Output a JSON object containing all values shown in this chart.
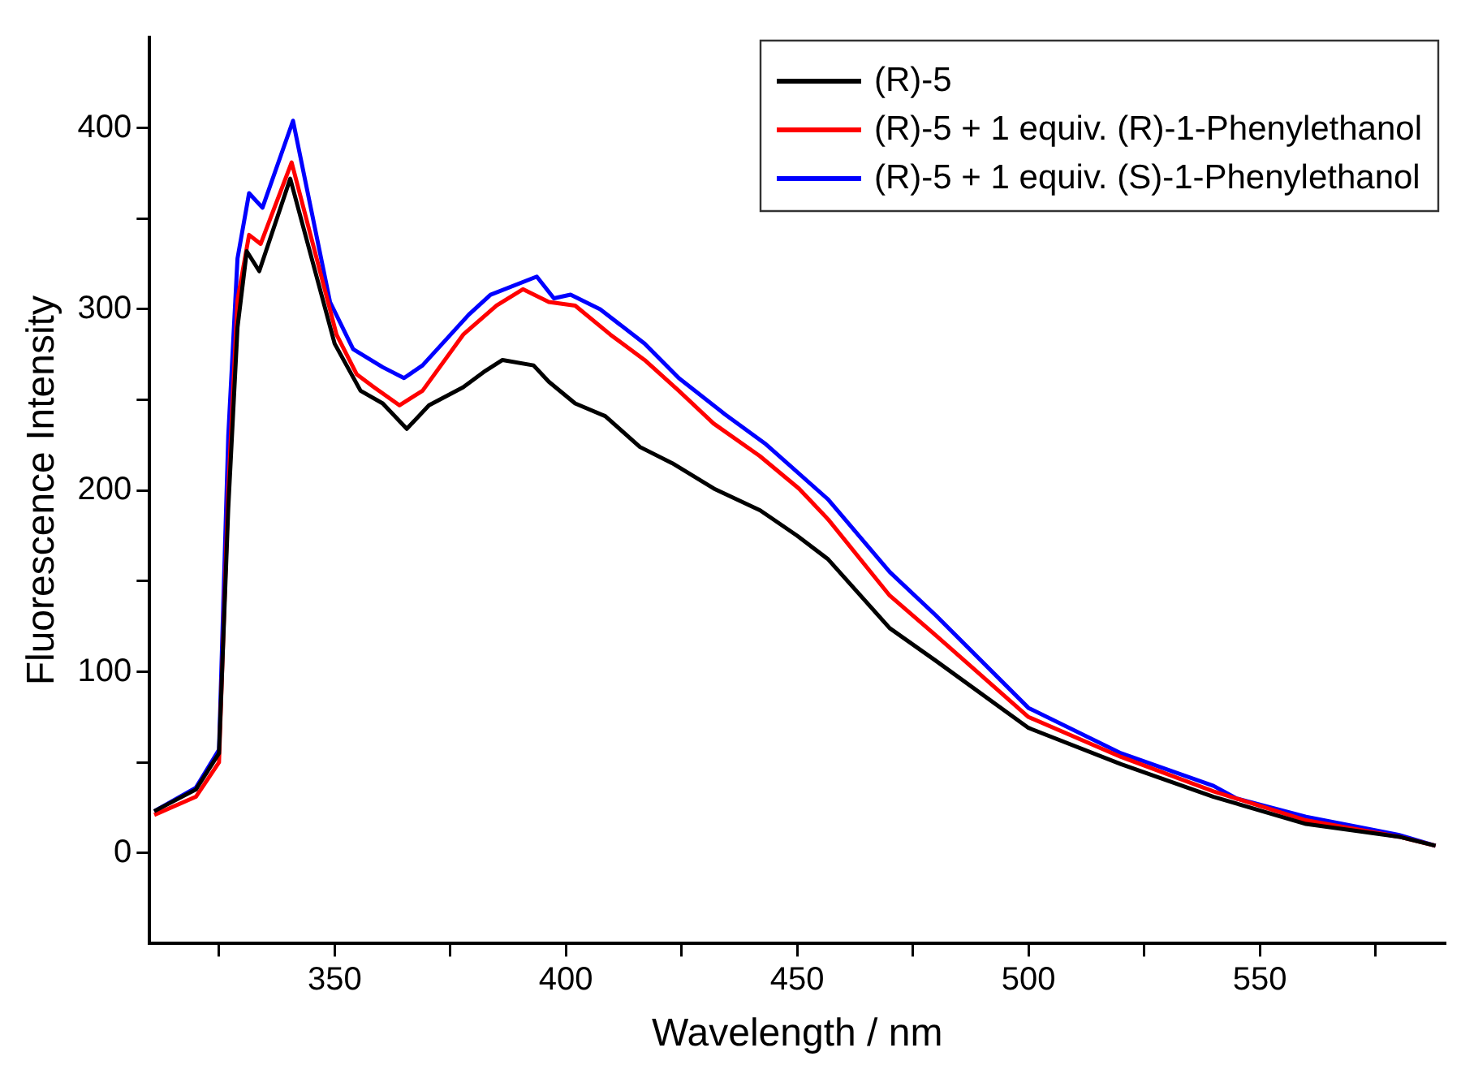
{
  "chart_data": {
    "type": "line",
    "xlabel": "Wavelength / nm",
    "ylabel": "Fluorescence Intensity",
    "xlim": [
      310,
      590
    ],
    "xticks": [
      {
        "value": 325,
        "label": null
      },
      350,
      {
        "value": 375,
        "label": null
      },
      400,
      {
        "value": 425,
        "label": null
      },
      450,
      {
        "value": 475,
        "label": null
      },
      500,
      {
        "value": 525,
        "label": null
      },
      550,
      {
        "value": 575,
        "label": null
      }
    ],
    "ylim": [
      -50,
      450
    ],
    "yticks": [
      0,
      {
        "value": 50,
        "label": null
      },
      100,
      {
        "value": 150,
        "label": null
      },
      200,
      {
        "value": 250,
        "label": null
      },
      300,
      {
        "value": 350,
        "label": null
      },
      400
    ],
    "grid": false,
    "legend": "top right",
    "marker": "none",
    "line_style": "solid",
    "series": [
      {
        "name": "(R)-5",
        "color": "#000000",
        "x": [
          311,
          320,
          325,
          327,
          329,
          331,
          333.7,
          340.4,
          350,
          355.6,
          360.4,
          365.6,
          370.4,
          377.8,
          382.6,
          386.3,
          393,
          396.3,
          402,
          408.5,
          416,
          423,
          432,
          442,
          450,
          456.7,
          470,
          480,
          500,
          520,
          540,
          560,
          580,
          588
        ],
        "values": [
          23,
          35,
          55,
          190,
          290,
          332,
          321,
          372,
          281,
          255,
          248,
          234,
          247,
          257,
          266,
          272,
          269,
          260,
          248,
          241,
          224,
          215,
          201,
          189,
          175,
          162,
          124,
          106,
          69,
          49,
          31,
          16,
          9,
          4
        ]
      },
      {
        "name": "(R)-5 + 1 equiv. (R)-1-Phenylethanol",
        "color": "#ff0000",
        "x": [
          311,
          320,
          325,
          327,
          329,
          331.5,
          334,
          340.7,
          350.4,
          354.8,
          358.5,
          364,
          369,
          377.8,
          385,
          390.7,
          396.3,
          402,
          409.6,
          417,
          424.4,
          431.9,
          441.9,
          450.4,
          456.7,
          470,
          480,
          500,
          520,
          540,
          560,
          580,
          588
        ],
        "values": [
          21,
          31,
          50,
          200,
          305,
          341,
          336,
          381,
          286,
          264,
          257,
          247,
          255,
          286,
          302,
          311,
          304,
          302,
          286,
          272,
          255,
          237,
          219,
          201,
          184,
          142,
          120,
          75,
          53,
          34,
          18,
          9,
          4
        ]
      },
      {
        "name": "(R)-5 + 1 equiv. (S)-1-Phenylethanol",
        "color": "#0000ff",
        "x": [
          311,
          320,
          325,
          327,
          329,
          331.5,
          334.4,
          341,
          349,
          354,
          360.4,
          365,
          369,
          379,
          383.7,
          393.7,
          397.4,
          401,
          407.4,
          417,
          424.4,
          434.4,
          443,
          456.7,
          470,
          480,
          500,
          520,
          540,
          545,
          560,
          580,
          588
        ],
        "values": [
          23,
          36,
          57,
          230,
          328,
          364,
          356,
          404,
          304,
          278,
          268,
          262,
          269,
          297,
          308,
          318,
          306,
          308,
          300,
          281,
          262,
          242,
          226,
          195,
          155,
          131,
          80,
          55,
          37,
          30,
          20,
          10,
          4
        ]
      }
    ]
  }
}
